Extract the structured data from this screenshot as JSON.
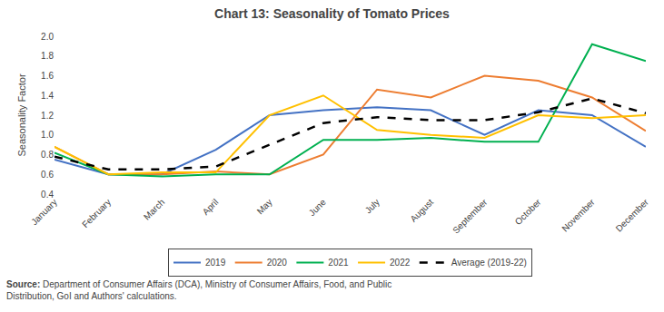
{
  "chart_data": {
    "type": "line",
    "title": "Chart 13: Seasonality of Tomato Prices",
    "ylabel": "Seasonality Factor",
    "categories": [
      "January",
      "February",
      "March",
      "April",
      "May",
      "June",
      "July",
      "August",
      "September",
      "October",
      "November",
      "December"
    ],
    "series": [
      {
        "name": "2019",
        "color": "#4472C4",
        "line_style": "solid",
        "values": [
          0.75,
          0.6,
          0.6,
          0.85,
          1.2,
          1.25,
          1.28,
          1.25,
          1.0,
          1.25,
          1.2,
          0.88
        ]
      },
      {
        "name": "2020",
        "color": "#ED7D31",
        "line_style": "solid",
        "values": [
          0.88,
          0.6,
          0.6,
          0.63,
          0.6,
          0.8,
          1.46,
          1.38,
          1.6,
          1.55,
          1.38,
          1.04
        ]
      },
      {
        "name": "2021",
        "color": "#00B050",
        "line_style": "solid",
        "values": [
          0.82,
          0.6,
          0.58,
          0.6,
          0.6,
          0.95,
          0.95,
          0.97,
          0.93,
          0.93,
          1.92,
          1.75
        ]
      },
      {
        "name": "2022",
        "color": "#FFC000",
        "line_style": "solid",
        "values": [
          0.88,
          0.6,
          0.62,
          0.62,
          1.2,
          1.4,
          1.05,
          1.0,
          0.97,
          1.2,
          1.17,
          1.2
        ]
      },
      {
        "name": "Average (2019-22)",
        "color": "#000000",
        "line_style": "dashed",
        "values": [
          0.78,
          0.65,
          0.65,
          0.68,
          0.9,
          1.12,
          1.18,
          1.15,
          1.15,
          1.23,
          1.37,
          1.22
        ]
      }
    ],
    "ylim": [
      0.4,
      2.0
    ],
    "yticks": [
      0.4,
      0.6,
      0.8,
      {
        "value": 1.0,
        "label": "1.0"
      },
      1.2,
      1.4,
      1.6,
      1.8,
      {
        "value": 2.0,
        "label": "2.0"
      }
    ],
    "grid": false,
    "legend": "bottom",
    "annotations": [
      "Source:",
      " Department of Consumer Affairs (DCA), Ministry of Consumer Affairs, Food, and Public\nDistribution, GoI and Authors' calculations."
    ]
  }
}
